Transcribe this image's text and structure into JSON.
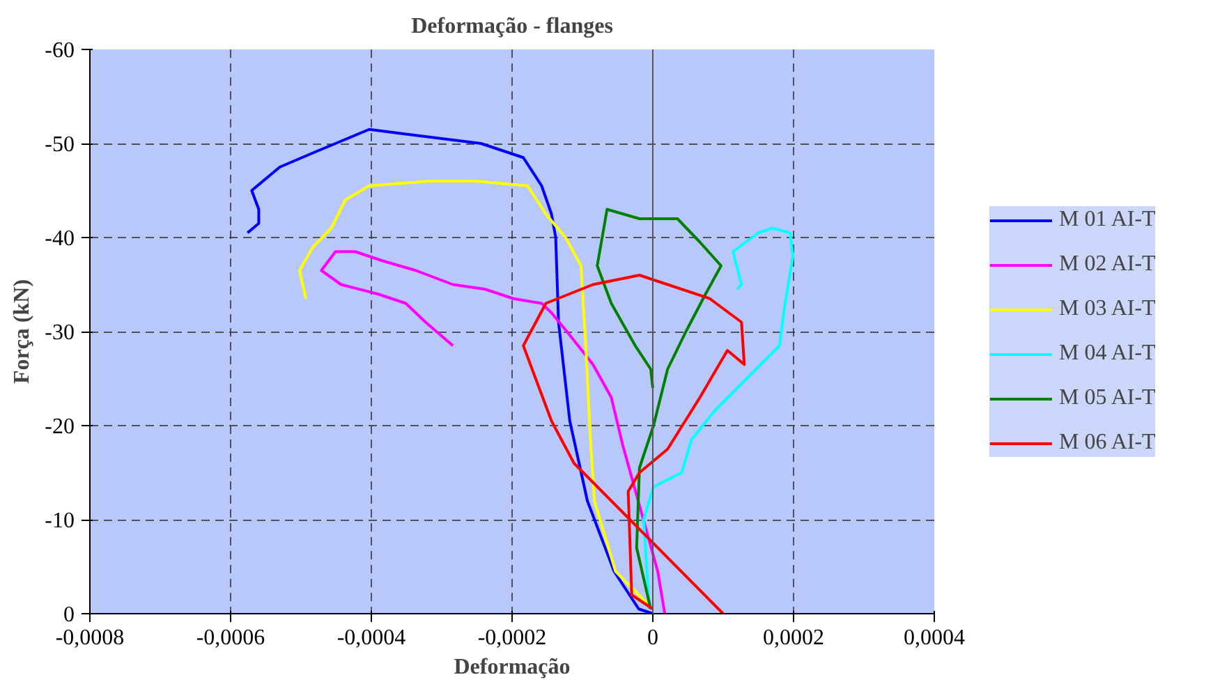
{
  "chart_data": {
    "type": "line",
    "title": "Deformação - flanges",
    "xlabel": "Deformação",
    "ylabel": "Força (kN)",
    "xlim": [
      -0.0008,
      0.0004
    ],
    "ylim": [
      0,
      -60
    ],
    "xticks": [
      {
        "value": -0.0008,
        "label": "-0,0008"
      },
      {
        "value": -0.0006,
        "label": "-0,0006"
      },
      {
        "value": -0.0004,
        "label": "-0,0004"
      },
      {
        "value": -0.0002,
        "label": "-0,0002"
      },
      {
        "value": 0,
        "label": "0"
      },
      {
        "value": 0.0002,
        "label": "0,0002"
      },
      {
        "value": 0.0004,
        "label": "0,0004"
      }
    ],
    "yticks": [
      0,
      -10,
      -20,
      -30,
      -40,
      -50,
      -60
    ],
    "grid": true,
    "legend": "right",
    "line_style": "solid",
    "series": [
      {
        "name": "M 01 AI-T",
        "color": "#0000ff",
        "x": [
          0.0,
          -2e-05,
          -5.5e-05,
          -9.3e-05,
          -0.000118,
          -0.000134,
          -0.000138,
          -0.000144,
          -0.000158,
          -0.000184,
          -0.000244,
          -0.000351,
          -0.000403,
          -0.000451,
          -0.000483,
          -0.00053,
          -0.00057,
          -0.00056,
          -0.00056,
          -0.000576
        ],
        "values": [
          0,
          -0.5,
          -4.5,
          -12,
          -20.5,
          -31,
          -40,
          -42.5,
          -45.5,
          -48.5,
          -50,
          -51,
          -51.5,
          -50,
          -49,
          -47.5,
          -45,
          -43,
          -41.5,
          -40.5
        ]
      },
      {
        "name": "M 02 AI-T",
        "color": "#ff00ff",
        "x": [
          1.7e-05,
          7e-06,
          -4.3e-05,
          -5.9e-05,
          -8.5e-05,
          -0.000122,
          -0.000144,
          -0.000158,
          -0.000198,
          -0.000238,
          -0.000284,
          -0.000337,
          -0.000383,
          -0.000423,
          -0.000451,
          -0.000471,
          -0.000443,
          -0.000391,
          -0.000351,
          -0.000323,
          -0.000284
        ],
        "values": [
          0,
          -4.5,
          -18,
          -23,
          -26.5,
          -30,
          -32,
          -33,
          -33.5,
          -34.5,
          -35,
          -36.5,
          -37.5,
          -38.5,
          -38.5,
          -36.5,
          -35,
          -34,
          -33,
          -31,
          -28.5
        ]
      },
      {
        "name": "M 03 AI-T",
        "color": "#ffff00",
        "x": [
          0.0,
          -5.3e-05,
          -8.3e-05,
          -8.9e-05,
          -9.5e-05,
          -0.000102,
          -0.000124,
          -0.000152,
          -0.000178,
          -0.000252,
          -0.000317,
          -0.000403,
          -0.000437,
          -0.000457,
          -0.000483,
          -0.000502,
          -0.000493
        ],
        "values": [
          -0.5,
          -4.5,
          -12,
          -19,
          -28,
          -37,
          -40,
          -42.5,
          -45.5,
          -46,
          -46,
          -45.5,
          -44,
          -41,
          -39,
          -36.5,
          -33.5
        ]
      },
      {
        "name": "M 04 AI-T",
        "color": "#00ffff",
        "x": [
          -5e-06,
          -1.3e-05,
          1e-06,
          4.1e-05,
          5.5e-05,
          8.7e-05,
          0.00014,
          0.00018,
          0.000186,
          0.000199,
          0.000195,
          0.00017,
          0.00015,
          0.000114,
          0.000126,
          0.00012
        ],
        "values": [
          -0.5,
          -10,
          -13.5,
          -15,
          -18.5,
          -21.5,
          -25.5,
          -28.5,
          -32,
          -38,
          -40.5,
          -41,
          -40.5,
          -38.5,
          -35,
          -34.5
        ]
      },
      {
        "name": "M 05 AI-T",
        "color": "#008000",
        "x": [
          -3e-06,
          -2.3e-05,
          -1.9e-05,
          1e-06,
          2.1e-05,
          4.7e-05,
          7.5e-05,
          9.7e-05,
          6.7e-05,
          3.5e-05,
          -1.9e-05,
          -6.5e-05,
          -7.9e-05,
          -5.9e-05,
          -2.5e-05,
          -3e-06,
          0.0
        ],
        "values": [
          -0.5,
          -7,
          -15.5,
          -20,
          -26,
          -30,
          -34,
          -37,
          -39.5,
          -42,
          -42,
          -43,
          -37,
          -33,
          -28.5,
          -26,
          -24
        ]
      },
      {
        "name": "M 06 AI-T",
        "color": "#ff0000",
        "x": [
          0.0,
          -3e-05,
          -3.5e-05,
          -1.9e-05,
          2.1e-05,
          6.7e-05,
          0.000106,
          0.00013,
          0.000126,
          8.1e-05,
          -1.9e-05,
          -8.5e-05,
          -0.000152,
          -0.000184,
          -0.000164,
          -0.000144,
          -0.000112,
          0.0001
        ],
        "values": [
          -0.5,
          -2,
          -13,
          -15,
          -17.5,
          -23,
          -28,
          -26.5,
          -31,
          -33.5,
          -36,
          -35,
          -33,
          -28.5,
          -24.5,
          -20.5,
          -16,
          0
        ]
      }
    ]
  }
}
